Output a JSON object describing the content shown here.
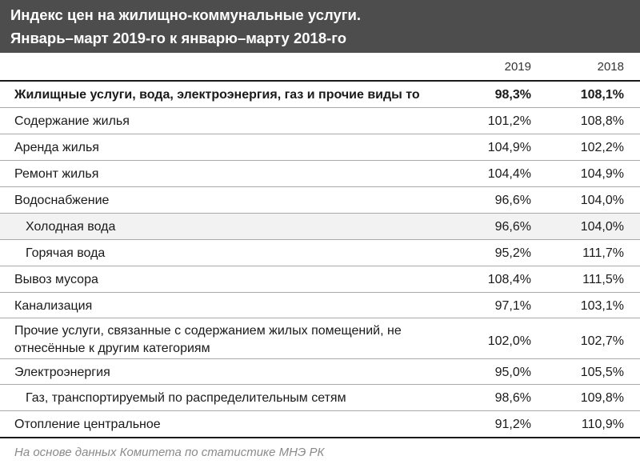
{
  "chart_data": {
    "type": "table",
    "title": "Индекс цен на жилищно-коммунальные услуги.",
    "subtitle": "Январь–март 2019-го к январю–марту 2018-го",
    "columns": [
      "2019",
      "2018"
    ],
    "rows": [
      {
        "label": "Жилищные услуги, вода, электроэнергия, газ и прочие виды то",
        "v2019": "98,3%",
        "v2018": "108,1%"
      },
      {
        "label": "Содержание жилья",
        "v2019": "101,2%",
        "v2018": "108,8%"
      },
      {
        "label": "Аренда жилья",
        "v2019": "104,9%",
        "v2018": "102,2%"
      },
      {
        "label": "Ремонт жилья",
        "v2019": "104,4%",
        "v2018": "104,9%"
      },
      {
        "label": "Водоснабжение",
        "v2019": "96,6%",
        "v2018": "104,0%"
      },
      {
        "label": "Холодная вода",
        "v2019": "96,6%",
        "v2018": "104,0%"
      },
      {
        "label": "Горячая вода",
        "v2019": "95,2%",
        "v2018": "111,7%"
      },
      {
        "label": "Вывоз мусора",
        "v2019": "108,4%",
        "v2018": "111,5%"
      },
      {
        "label": "Канализация",
        "v2019": "97,1%",
        "v2018": "103,1%"
      },
      {
        "label": "Прочие услуги, связанные с содержанием жилых помещений, не отнесённые к другим категориям",
        "v2019": "102,0%",
        "v2018": "102,7%"
      },
      {
        "label": "Электроэнергия",
        "v2019": "95,0%",
        "v2018": "105,5%"
      },
      {
        "label": "Газ, транспортируемый по распределительным сетям",
        "v2019": "98,6%",
        "v2018": "109,8%"
      },
      {
        "label": "Отопление центральное",
        "v2019": "91,2%",
        "v2018": "110,9%"
      }
    ],
    "source": "На основе данных Комитета по статистике МНЭ РК"
  }
}
